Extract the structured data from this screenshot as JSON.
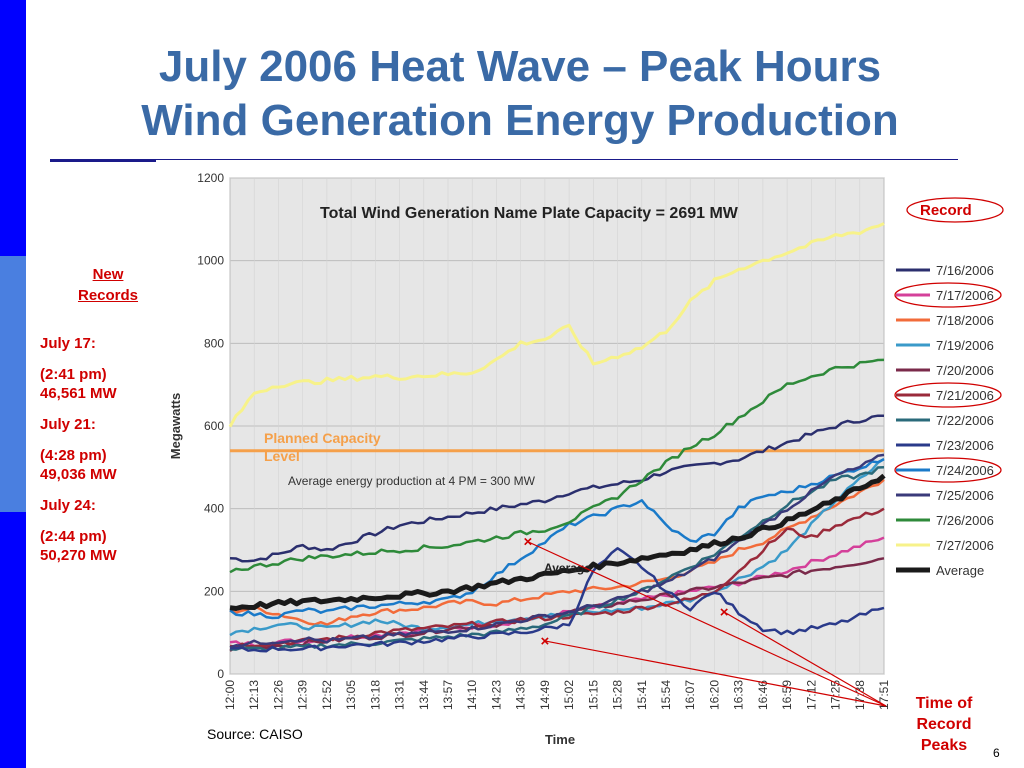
{
  "slide": {
    "title_line1": "July 2006 Heat Wave – Peak Hours",
    "title_line2": "Wind Generation Energy Production",
    "new_records_line1": "New",
    "new_records_line2": "Records",
    "records": [
      "July 17:",
      "(2:41 pm)",
      "46,561 MW",
      "July 21:",
      "(4:28 pm)",
      "49,036 MW",
      "July 24:",
      "(2:44 pm)",
      "50,270 MW"
    ],
    "record_label": "Record",
    "peaks_label": [
      "Time of",
      "Record",
      "Peaks"
    ],
    "source": "Source: CAISO",
    "page_number": "6"
  },
  "chart_data": {
    "type": "line",
    "title": "Total Wind Generation Name Plate Capacity = 2691 MW",
    "xlabel": "Time",
    "ylabel": "Megawatts",
    "ylim": [
      0,
      1200
    ],
    "yticks": [
      0,
      200,
      400,
      600,
      800,
      1000,
      1200
    ],
    "x": [
      "12:00",
      "12:13",
      "12:26",
      "12:39",
      "12:52",
      "13:05",
      "13:18",
      "13:31",
      "13:44",
      "13:57",
      "14:10",
      "14:23",
      "14:36",
      "14:49",
      "15:02",
      "15:15",
      "15:28",
      "15:41",
      "15:54",
      "16:07",
      "16:20",
      "16:33",
      "16:46",
      "16:59",
      "17:12",
      "17:25",
      "17:38",
      "17:51"
    ],
    "x_tick_labels": [
      "12:00",
      "12:13",
      "12:26",
      "12:39",
      "12:52",
      "13:05",
      "13:18",
      "13:31",
      "13:44",
      "13:57",
      "14:10",
      "14:23",
      "14:36",
      "14:49",
      "15:02",
      "15:15",
      "15:28",
      "15:41",
      "15:54",
      "16:07",
      "16:20",
      "16:33",
      "16:46",
      "16:59",
      "17:12",
      "17:25",
      "17:38",
      "17:51"
    ],
    "planned_capacity": 540,
    "planned_capacity_label": [
      "Planned Capacity",
      "Level"
    ],
    "annotation_avg": "Average energy production at 4 PM = 300 MW",
    "annotation_average": "Average",
    "legend_position": "right",
    "grid": true,
    "background_color": "#e6e6e6",
    "planned_color": "#f5a04a",
    "record_color": "#d00000",
    "series": [
      {
        "name": "7/16/2006",
        "color": "#2b2f6e",
        "width": 2.5,
        "values": [
          280,
          275,
          290,
          310,
          300,
          320,
          340,
          360,
          370,
          380,
          390,
          400,
          410,
          420,
          440,
          450,
          460,
          470,
          490,
          500,
          510,
          520,
          540,
          560,
          580,
          600,
          615,
          625
        ]
      },
      {
        "name": "7/17/2006",
        "color": "#d4409a",
        "width": 2.5,
        "values": [
          75,
          72,
          78,
          80,
          85,
          90,
          95,
          100,
          105,
          110,
          115,
          120,
          130,
          140,
          150,
          160,
          170,
          180,
          190,
          200,
          210,
          220,
          235,
          250,
          270,
          290,
          310,
          330
        ]
      },
      {
        "name": "7/18/2006",
        "color": "#f26b3a",
        "width": 2.5,
        "values": [
          150,
          160,
          145,
          130,
          120,
          140,
          150,
          155,
          160,
          170,
          175,
          170,
          180,
          190,
          200,
          205,
          210,
          220,
          230,
          250,
          270,
          300,
          320,
          350,
          380,
          410,
          440,
          470
        ]
      },
      {
        "name": "7/19/2006",
        "color": "#3a9ac9",
        "width": 2.5,
        "values": [
          100,
          110,
          120,
          115,
          110,
          120,
          130,
          120,
          110,
          115,
          120,
          130,
          135,
          140,
          145,
          150,
          155,
          160,
          170,
          180,
          200,
          230,
          260,
          300,
          360,
          420,
          470,
          520
        ]
      },
      {
        "name": "7/20/2006",
        "color": "#7a2a4a",
        "width": 2.5,
        "values": [
          60,
          65,
          70,
          75,
          80,
          85,
          90,
          95,
          100,
          110,
          115,
          120,
          130,
          140,
          150,
          160,
          170,
          180,
          190,
          200,
          210,
          220,
          230,
          240,
          250,
          260,
          270,
          280
        ]
      },
      {
        "name": "7/21/2006",
        "color": "#9a2a3a",
        "width": 2.5,
        "values": [
          70,
          72,
          75,
          80,
          85,
          90,
          100,
          105,
          110,
          115,
          120,
          125,
          130,
          135,
          140,
          145,
          150,
          160,
          170,
          180,
          200,
          250,
          300,
          350,
          330,
          360,
          380,
          400
        ]
      },
      {
        "name": "7/22/2006",
        "color": "#2a6a7a",
        "width": 2.5,
        "values": [
          60,
          60,
          62,
          65,
          70,
          72,
          75,
          80,
          85,
          90,
          95,
          100,
          110,
          120,
          140,
          160,
          180,
          200,
          230,
          260,
          290,
          330,
          370,
          410,
          440,
          470,
          480,
          500
        ]
      },
      {
        "name": "7/23/2006",
        "color": "#2a3a8a",
        "width": 2.5,
        "values": [
          60,
          58,
          62,
          60,
          65,
          70,
          72,
          75,
          80,
          85,
          90,
          95,
          100,
          110,
          120,
          250,
          300,
          260,
          200,
          160,
          200,
          150,
          110,
          100,
          110,
          120,
          140,
          160
        ]
      },
      {
        "name": "7/24/2006",
        "color": "#1a7ac9",
        "width": 2.5,
        "values": [
          150,
          145,
          140,
          155,
          150,
          160,
          165,
          170,
          175,
          180,
          200,
          240,
          280,
          320,
          360,
          380,
          400,
          420,
          360,
          320,
          340,
          400,
          430,
          440,
          460,
          480,
          500,
          520
        ]
      },
      {
        "name": "7/25/2006",
        "color": "#3a3a7a",
        "width": 2.5,
        "values": [
          70,
          75,
          80,
          85,
          80,
          85,
          90,
          95,
          100,
          105,
          110,
          120,
          130,
          140,
          150,
          165,
          180,
          200,
          220,
          250,
          280,
          320,
          360,
          400,
          440,
          480,
          500,
          530
        ]
      },
      {
        "name": "7/26/2006",
        "color": "#2e8a3a",
        "width": 2.5,
        "values": [
          250,
          260,
          270,
          280,
          285,
          290,
          295,
          300,
          305,
          310,
          320,
          330,
          340,
          350,
          370,
          400,
          430,
          470,
          510,
          550,
          580,
          620,
          660,
          700,
          720,
          740,
          750,
          760
        ]
      },
      {
        "name": "7/27/2006",
        "color": "#f7f28a",
        "width": 3,
        "values": [
          600,
          680,
          700,
          705,
          710,
          715,
          720,
          718,
          722,
          725,
          730,
          760,
          800,
          810,
          840,
          750,
          770,
          790,
          830,
          900,
          950,
          980,
          1000,
          1020,
          1040,
          1060,
          1070,
          1090
        ]
      },
      {
        "name": "Average",
        "color": "#1a1a1a",
        "width": 5,
        "values": [
          160,
          165,
          170,
          175,
          178,
          182,
          186,
          190,
          195,
          200,
          210,
          220,
          230,
          240,
          250,
          260,
          270,
          280,
          290,
          300,
          315,
          330,
          350,
          370,
          395,
          420,
          450,
          480
        ]
      }
    ]
  }
}
